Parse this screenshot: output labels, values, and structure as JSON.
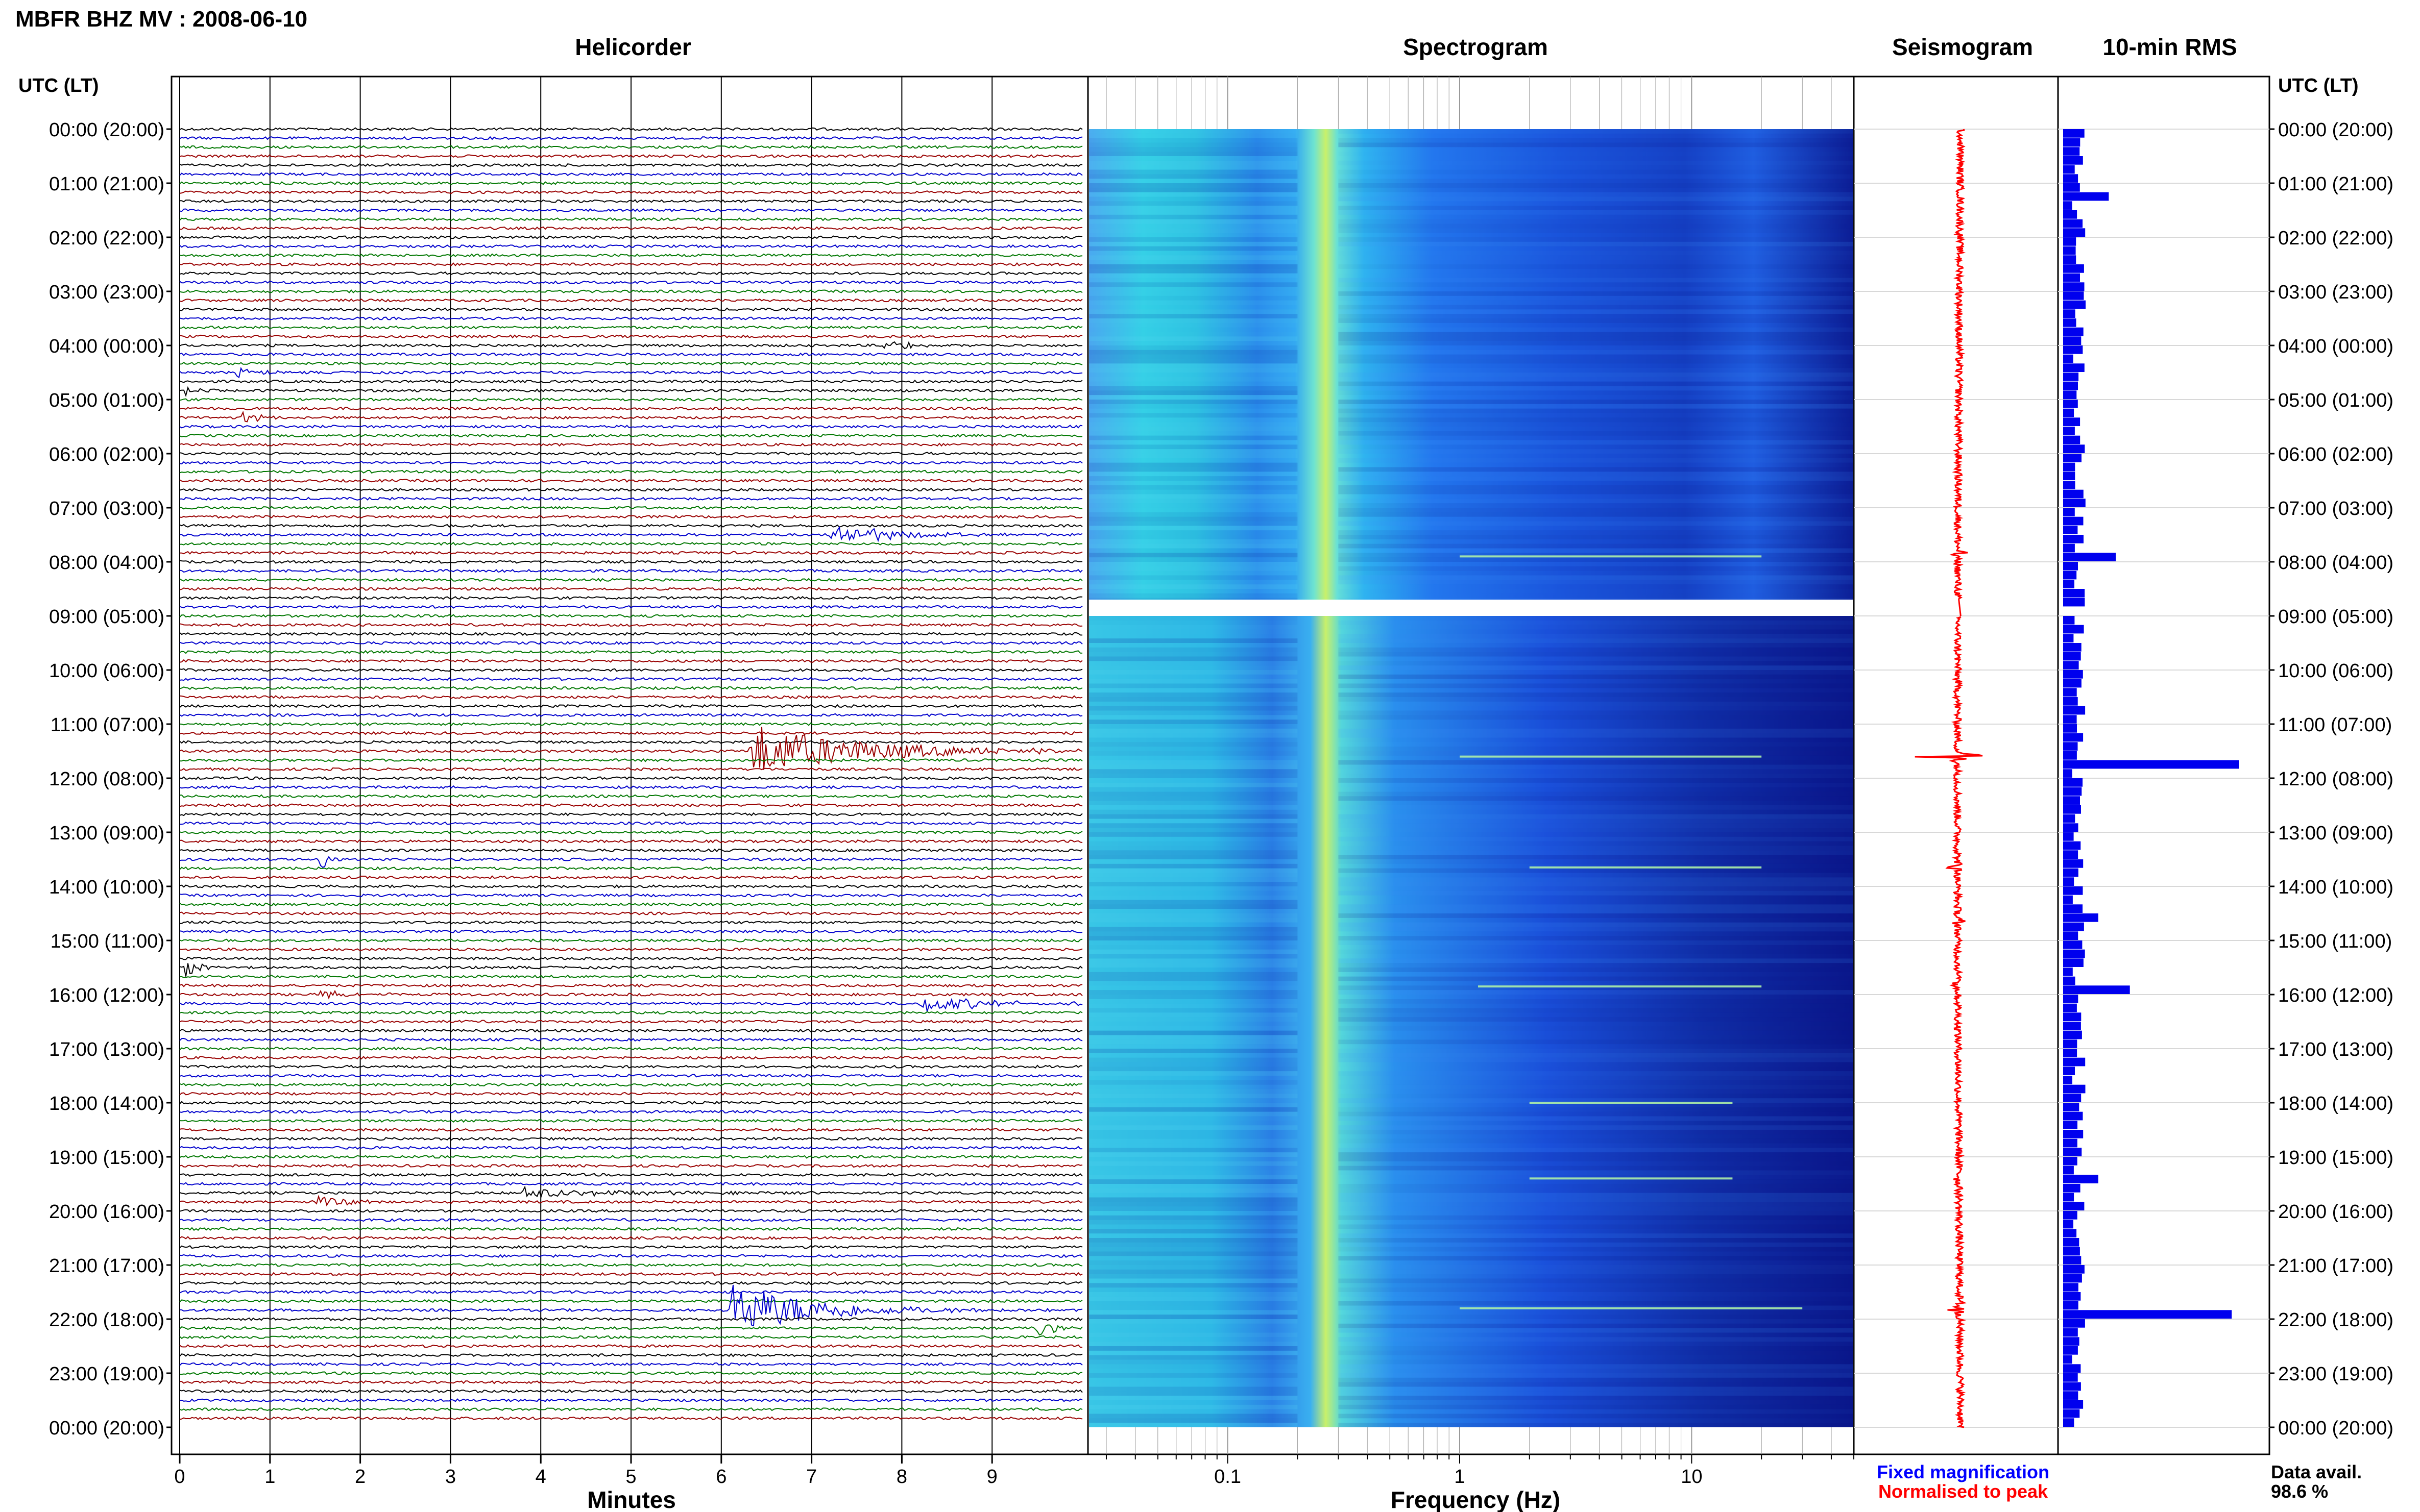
{
  "header": {
    "station_title": "MBFR BHZ MV : 2008-06-10",
    "time_axis_label": "UTC (LT)"
  },
  "colors": {
    "trace_cycle": [
      "#000000",
      "#0000cc",
      "#007700",
      "#990000"
    ],
    "spectrogram_low": "#0a1a8c",
    "spectrogram_mid": "#1f6bf2",
    "spectrogram_high": "#3fd0e0",
    "spectrogram_peak": "#c9f06a",
    "seismogram": "#ff0000",
    "rms_bars": "#0000ee",
    "legend_fixed": "#0000ff",
    "legend_normalised": "#ff0000"
  },
  "chart_data": [
    {
      "type": "line",
      "title": "Helicorder",
      "xlabel": "Minutes",
      "x_ticks": [
        "0",
        "1",
        "2",
        "3",
        "4",
        "5",
        "6",
        "7",
        "8",
        "9"
      ],
      "xlim": [
        0,
        10
      ],
      "y_ticks": [
        "00:00 (20:00)",
        "01:00 (21:00)",
        "02:00 (22:00)",
        "03:00 (23:00)",
        "04:00 (00:00)",
        "05:00 (01:00)",
        "06:00 (02:00)",
        "07:00 (03:00)",
        "08:00 (04:00)",
        "09:00 (05:00)",
        "10:00 (06:00)",
        "11:00 (07:00)",
        "12:00 (08:00)",
        "13:00 (09:00)",
        "14:00 (10:00)",
        "15:00 (11:00)",
        "16:00 (12:00)",
        "17:00 (13:00)",
        "18:00 (14:00)",
        "19:00 (15:00)",
        "20:00 (16:00)",
        "21:00 (17:00)",
        "22:00 (18:00)",
        "23:00 (19:00)",
        "00:00 (20:00)"
      ],
      "rows_per_hour": 6,
      "events": [
        {
          "row": 69,
          "start_min": 6.3,
          "amp": 1.0,
          "decay_min": 1.2,
          "color": "#990000"
        },
        {
          "row": 131,
          "start_min": 6.1,
          "amp": 1.0,
          "decay_min": 0.9,
          "color": "#0000cc"
        },
        {
          "row": 45,
          "start_min": 7.2,
          "amp": 0.45,
          "decay_min": 0.6,
          "color": "#0000cc"
        },
        {
          "row": 93,
          "start_min": 0.05,
          "amp": 0.45,
          "decay_min": 0.15,
          "color": "#000000"
        },
        {
          "row": 81,
          "start_min": 1.55,
          "amp": 0.4,
          "decay_min": 0.15,
          "color": "#0000cc"
        },
        {
          "row": 97,
          "start_min": 8.2,
          "amp": 0.3,
          "decay_min": 0.8,
          "color": "#0000cc"
        },
        {
          "row": 133,
          "start_min": 9.5,
          "amp": 0.3,
          "decay_min": 0.2,
          "color": "#007700"
        },
        {
          "row": 96,
          "start_min": 1.5,
          "amp": 0.15,
          "decay_min": 0.6,
          "color": "#990000"
        },
        {
          "row": 118,
          "start_min": 3.8,
          "amp": 0.2,
          "decay_min": 1.0,
          "color": "#000000"
        },
        {
          "row": 119,
          "start_min": 1.5,
          "amp": 0.2,
          "decay_min": 0.4,
          "color": "#990000"
        },
        {
          "row": 27,
          "start_min": 0.6,
          "amp": 0.2,
          "decay_min": 0.2,
          "color": "#0000cc"
        },
        {
          "row": 29,
          "start_min": 0.05,
          "amp": 0.2,
          "decay_min": 0.15,
          "color": "#000000"
        },
        {
          "row": 32,
          "start_min": 0.65,
          "amp": 0.25,
          "decay_min": 0.2,
          "color": "#990000"
        },
        {
          "row": 24,
          "start_min": 7.8,
          "amp": 0.2,
          "decay_min": 0.3,
          "color": "#000000"
        }
      ]
    },
    {
      "type": "heatmap",
      "title": "Spectrogram",
      "xlabel": "Frequency (Hz)",
      "x_scale": "log",
      "xlim": [
        0.025,
        50
      ],
      "x_ticks": [
        {
          "value": 0.1,
          "label": "0.1"
        },
        {
          "value": 1,
          "label": "1"
        },
        {
          "value": 10,
          "label": "10"
        }
      ],
      "gap_hours": [
        8.7,
        9.0
      ],
      "peak_band_hz": [
        0.2,
        0.25
      ],
      "narrow_lines": [
        {
          "hour": 7.9,
          "f_start": 1,
          "f_end": 20
        },
        {
          "hour": 11.6,
          "f_start": 1,
          "f_end": 20
        },
        {
          "hour": 13.65,
          "f_start": 2,
          "f_end": 20
        },
        {
          "hour": 15.85,
          "f_start": 1.2,
          "f_end": 20
        },
        {
          "hour": 18.0,
          "f_start": 2,
          "f_end": 15
        },
        {
          "hour": 19.4,
          "f_start": 2,
          "f_end": 15
        },
        {
          "hour": 21.8,
          "f_start": 1,
          "f_end": 30
        }
      ]
    },
    {
      "type": "line",
      "title": "Seismogram",
      "spikes": [
        {
          "hour": 7.85,
          "amp": 0.25
        },
        {
          "hour": 11.6,
          "amp": 0.9
        },
        {
          "hour": 13.65,
          "amp": 0.2
        },
        {
          "hour": 14.65,
          "amp": 0.1
        },
        {
          "hour": 15.8,
          "amp": 0.15
        },
        {
          "hour": 19.4,
          "amp": 0.1
        },
        {
          "hour": 21.8,
          "amp": 0.85
        }
      ]
    },
    {
      "type": "bar",
      "title": "10-min RMS",
      "bar_hours": [
        11.6,
        21.8,
        15.75,
        7.8,
        1.2,
        14.55,
        19.4
      ],
      "bar_values": [
        1.0,
        0.96,
        0.38,
        0.3,
        0.26,
        0.2,
        0.2
      ]
    }
  ],
  "legend": {
    "fixed_magnification": "Fixed magnification",
    "normalised_to_peak": "Normalised to peak"
  },
  "data_availability": {
    "label": "Data avail.",
    "value": "98.6 %"
  }
}
